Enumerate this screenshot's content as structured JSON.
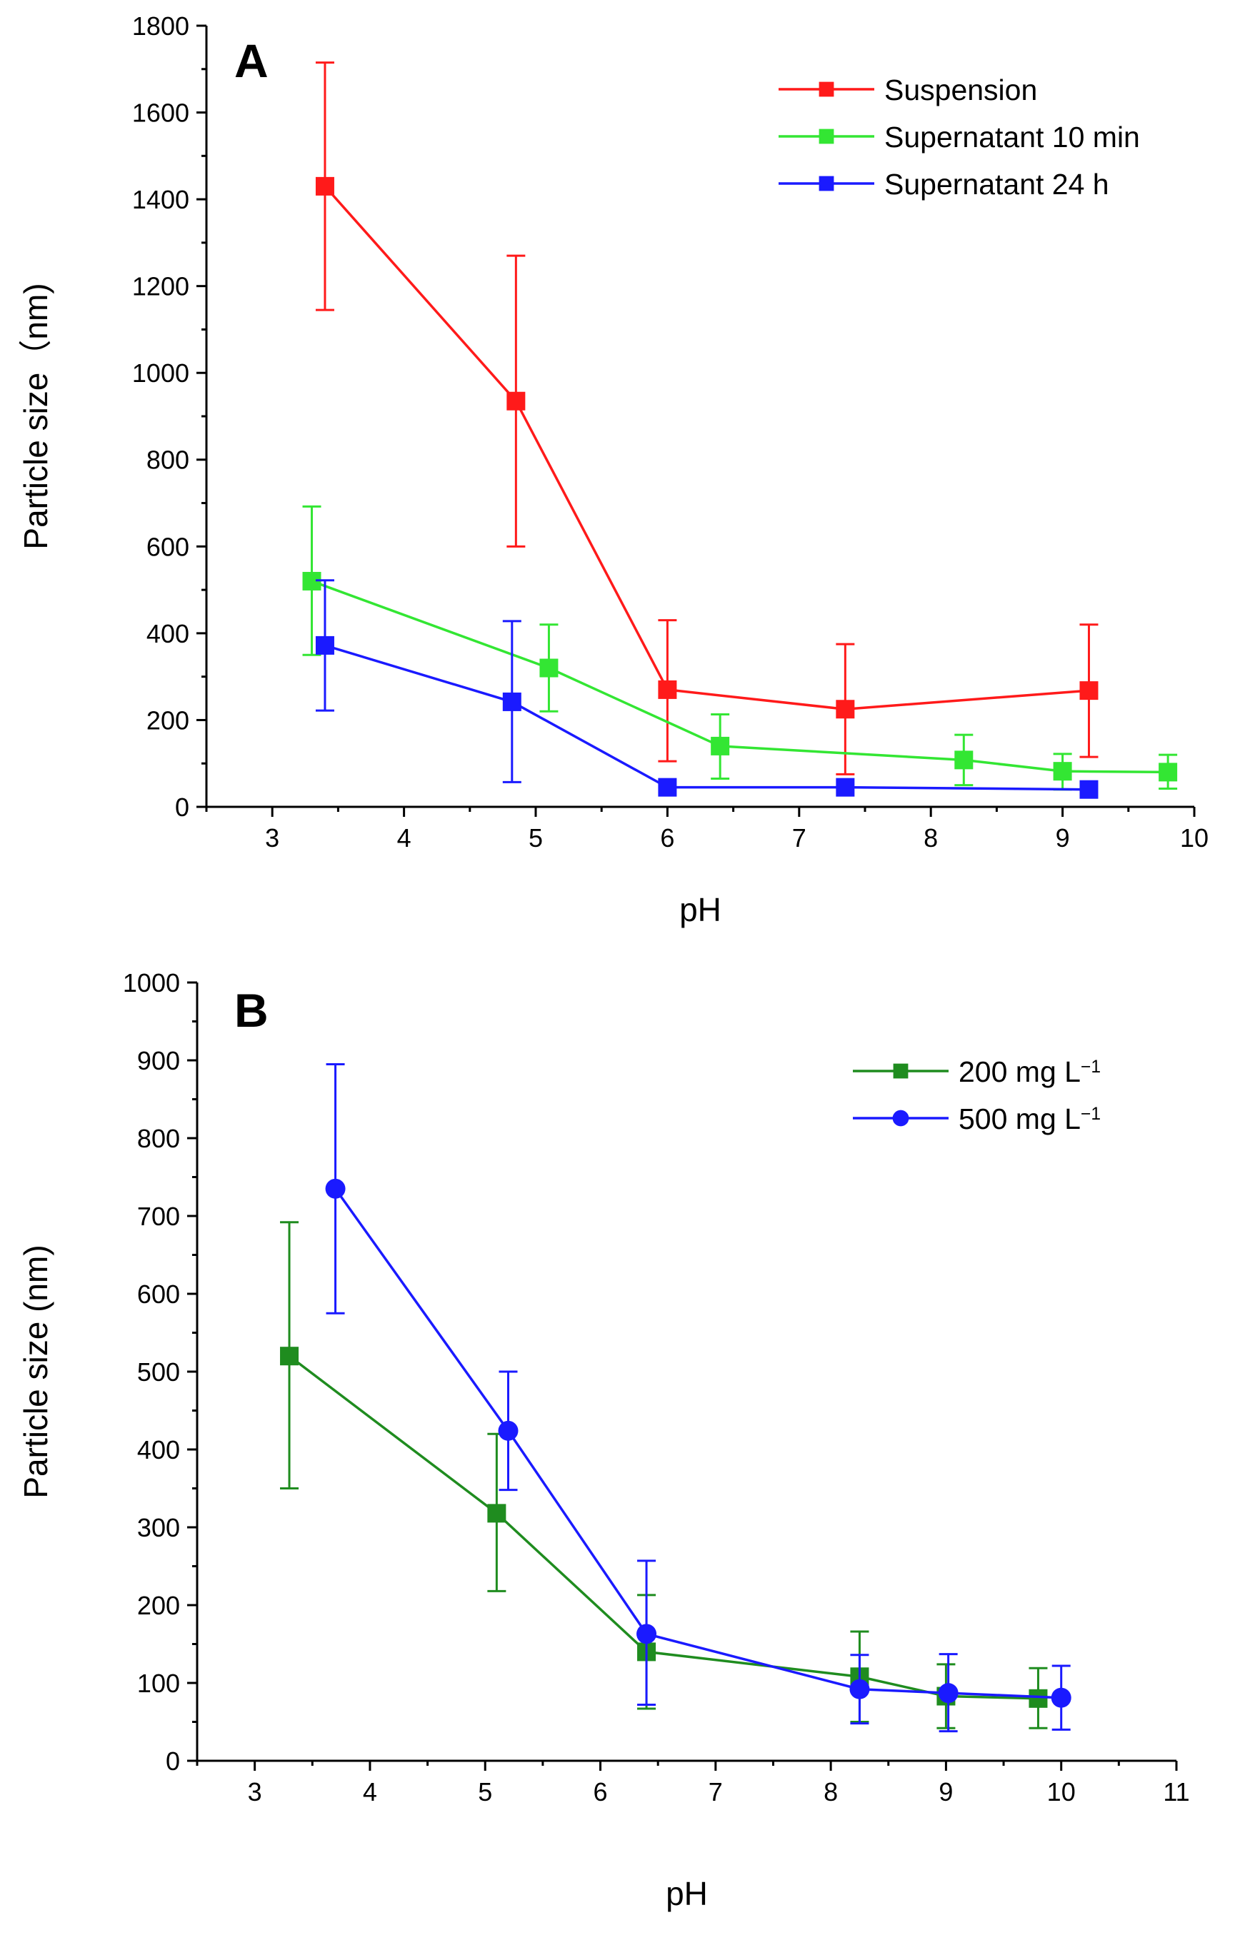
{
  "chart_data": [
    {
      "type": "line",
      "panel_label": "A",
      "title": "",
      "xlabel": "pH",
      "ylabel": "Particle size（nm)",
      "xlim": [
        2.5,
        10
      ],
      "ylim": [
        0,
        1800
      ],
      "xticks": [
        "3",
        "4",
        "5",
        "6",
        "7",
        "8",
        "9",
        "10"
      ],
      "xtick_values": [
        3,
        4,
        5,
        6,
        7,
        8,
        9,
        10
      ],
      "yticks": [
        "0",
        "200",
        "400",
        "600",
        "800",
        "1000",
        "1200",
        "1400",
        "1600",
        "1800"
      ],
      "ytick_values": [
        0,
        200,
        400,
        600,
        800,
        1000,
        1200,
        1400,
        1600,
        1800
      ],
      "grid": false,
      "legend_position": "top-right",
      "series": [
        {
          "name": "Suspension",
          "color": "#ff1a1a",
          "marker": "square",
          "x": [
            3.4,
            4.85,
            6.0,
            7.35,
            9.2
          ],
          "y": [
            1430,
            935,
            270,
            225,
            268
          ],
          "err_low": [
            1145,
            600,
            105,
            75,
            115
          ],
          "err_high": [
            1715,
            1270,
            430,
            375,
            420
          ]
        },
        {
          "name": "Supernatant 10 min",
          "color": "#33e633",
          "marker": "square",
          "x": [
            3.3,
            5.1,
            6.4,
            8.25,
            9.0,
            9.8
          ],
          "y": [
            520,
            320,
            140,
            108,
            82,
            80
          ],
          "err_low": [
            350,
            220,
            65,
            50,
            40,
            42
          ],
          "err_high": [
            692,
            420,
            213,
            166,
            122,
            120
          ]
        },
        {
          "name": "Supernatant 24 h",
          "color": "#1a1aff",
          "marker": "square",
          "x": [
            3.4,
            4.82,
            6.0,
            7.35,
            9.2
          ],
          "y": [
            372,
            242,
            45,
            45,
            40
          ],
          "err_low": [
            222,
            57,
            45,
            45,
            40
          ],
          "err_high": [
            522,
            428,
            45,
            45,
            40
          ]
        }
      ]
    },
    {
      "type": "line",
      "panel_label": "B",
      "title": "",
      "xlabel": "pH",
      "ylabel": "Particle size (nm)",
      "xlim": [
        2.5,
        11
      ],
      "ylim": [
        0,
        1000
      ],
      "xticks": [
        "3",
        "4",
        "5",
        "6",
        "7",
        "8",
        "9",
        "10",
        "11"
      ],
      "xtick_values": [
        3,
        4,
        5,
        6,
        7,
        8,
        9,
        10,
        11
      ],
      "yticks": [
        "0",
        "100",
        "200",
        "300",
        "400",
        "500",
        "600",
        "700",
        "800",
        "900",
        "1000"
      ],
      "ytick_values": [
        0,
        100,
        200,
        300,
        400,
        500,
        600,
        700,
        800,
        900,
        1000
      ],
      "grid": false,
      "legend_position": "top-right",
      "series": [
        {
          "name": "200 mg L",
          "superscript": "−1",
          "color": "#1f8c1f",
          "marker": "square",
          "x": [
            3.3,
            5.1,
            6.4,
            8.25,
            9.0,
            9.8
          ],
          "y": [
            520,
            318,
            140,
            108,
            83,
            80
          ],
          "err_low": [
            350,
            218,
            67,
            50,
            42,
            42
          ],
          "err_high": [
            692,
            420,
            213,
            166,
            124,
            119
          ]
        },
        {
          "name": "500 mg L",
          "superscript": "−1",
          "color": "#1a1aff",
          "marker": "circle",
          "x": [
            3.7,
            5.2,
            6.4,
            8.25,
            9.02,
            10.0
          ],
          "y": [
            735,
            424,
            163,
            92,
            87,
            81
          ],
          "err_low": [
            575,
            348,
            72,
            48,
            38,
            40
          ],
          "err_high": [
            895,
            500,
            257,
            136,
            137,
            122
          ]
        }
      ]
    }
  ]
}
